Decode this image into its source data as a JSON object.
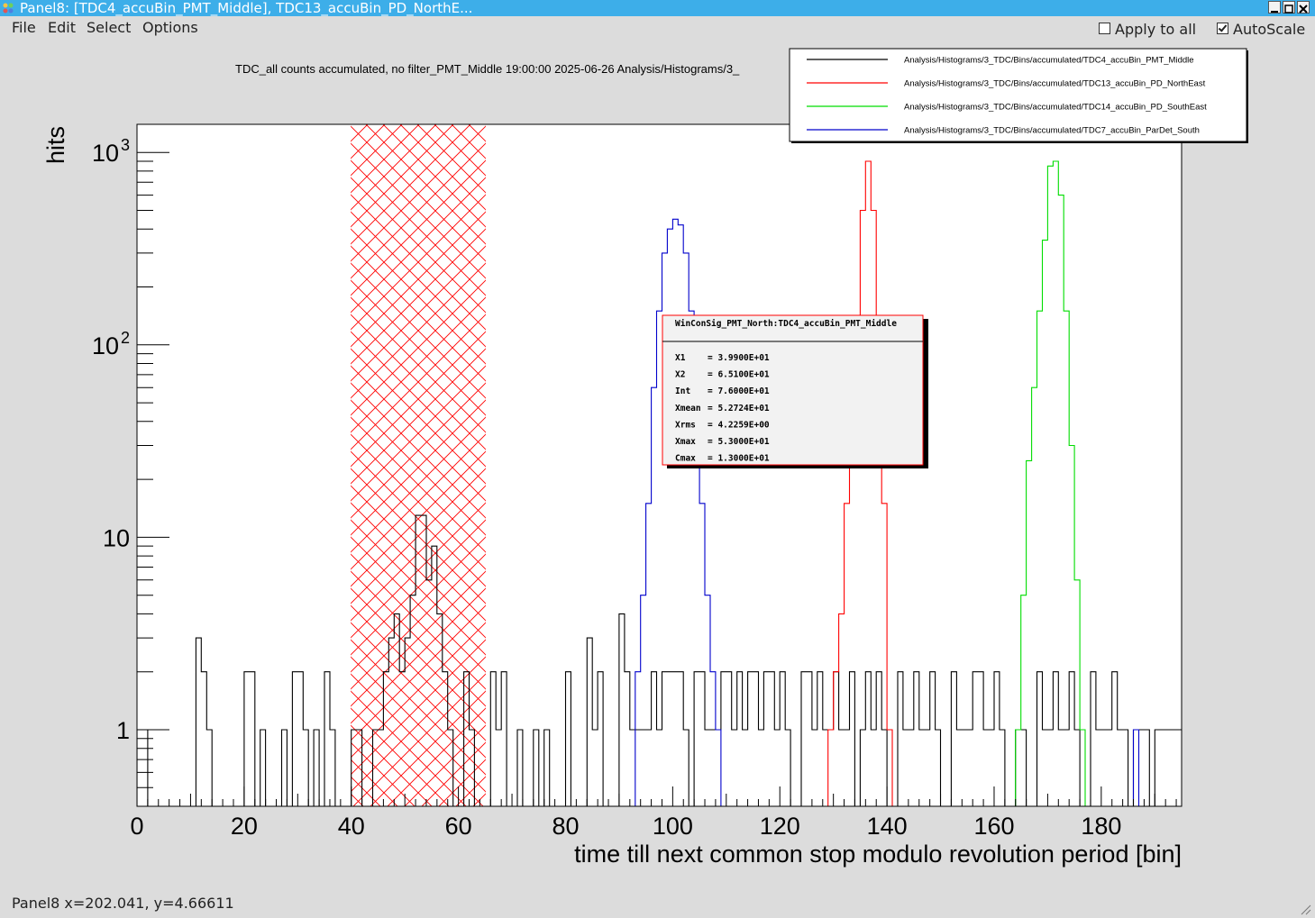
{
  "window": {
    "title": "Panel8: [TDC4_accuBin_PMT_Middle], TDC13_accuBin_PD_NorthE..."
  },
  "menu": {
    "file": "File",
    "edit": "Edit",
    "select": "Select",
    "options": "Options"
  },
  "toolbar": {
    "apply_to_all": "Apply to all",
    "apply_to_all_checked": false,
    "autoscale": "AutoScale",
    "autoscale_checked": true
  },
  "plot": {
    "title": "TDC_all counts accumulated, no filter_PMT_Middle  19:00:00  2025-06-26  Analysis/Histograms/3_",
    "ylabel": "hits",
    "xlabel": "time till next common stop modulo revolution period [bin]",
    "xticks": [
      "0",
      "20",
      "40",
      "60",
      "80",
      "100",
      "120",
      "140",
      "160",
      "180"
    ],
    "yticks": [
      {
        "base": "10",
        "exp": "3"
      },
      {
        "base": "10",
        "exp": "2"
      },
      {
        "base": "10",
        "exp": ""
      },
      {
        "base": "1",
        "exp": ""
      }
    ],
    "legend": [
      {
        "label": "Analysis/Histograms/3_TDC/Bins/accumulated/TDC4_accuBin_PMT_Middle",
        "color": "#000000"
      },
      {
        "label": "Analysis/Histograms/3_TDC/Bins/accumulated/TDC13_accuBin_PD_NorthEast",
        "color": "#ff0000"
      },
      {
        "label": "Analysis/Histograms/3_TDC/Bins/accumulated/TDC14_accuBin_PD_SouthEast",
        "color": "#00dd00"
      },
      {
        "label": "Analysis/Histograms/3_TDC/Bins/accumulated/TDC7_accuBin_ParDet_South",
        "color": "#0000cc"
      }
    ],
    "stats": {
      "title": "WinConSig_PMT_North:TDC4_accuBin_PMT_Middle",
      "rows": [
        {
          "k": "X1",
          "v": "= 3.9900E+01"
        },
        {
          "k": "X2",
          "v": "= 6.5100E+01"
        },
        {
          "k": "Int",
          "v": "= 7.6000E+01"
        },
        {
          "k": "Xmean",
          "v": "= 5.2724E+01"
        },
        {
          "k": "Xrms",
          "v": "= 4.2259E+00"
        },
        {
          "k": "Xmax",
          "v": "= 5.3000E+01"
        },
        {
          "k": "Cmax",
          "v": "= 1.3000E+01"
        }
      ]
    }
  },
  "chart_data": {
    "type": "line",
    "xlabel": "time till next common stop modulo revolution period [bin]",
    "ylabel": "hits",
    "xlim": [
      0,
      195
    ],
    "ylim": [
      0.4,
      1400
    ],
    "log_y": true,
    "window_region": [
      39.9,
      65.1
    ],
    "series": [
      {
        "name": "Analysis/Histograms/3_TDC/Bins/accumulated/TDC4_accuBin_PMT_Middle",
        "color": "#000000",
        "bins": [
          [
            0,
            1
          ],
          [
            2,
            0
          ],
          [
            11,
            3
          ],
          [
            12,
            2
          ],
          [
            13,
            1
          ],
          [
            14,
            0
          ],
          [
            20,
            2
          ],
          [
            22,
            0
          ],
          [
            23,
            1
          ],
          [
            24,
            0
          ],
          [
            27,
            1
          ],
          [
            28,
            0
          ],
          [
            29,
            2
          ],
          [
            31,
            1
          ],
          [
            32,
            0
          ],
          [
            33,
            1
          ],
          [
            34,
            0
          ],
          [
            35,
            2
          ],
          [
            36,
            1
          ],
          [
            37,
            0
          ],
          [
            40,
            1
          ],
          [
            42,
            0
          ],
          [
            44,
            1
          ],
          [
            46,
            2
          ],
          [
            47,
            3
          ],
          [
            48,
            4
          ],
          [
            49,
            2
          ],
          [
            50,
            3
          ],
          [
            51,
            5
          ],
          [
            52,
            13
          ],
          [
            54,
            6
          ],
          [
            55,
            9
          ],
          [
            56,
            4
          ],
          [
            57,
            2
          ],
          [
            58,
            1
          ],
          [
            59,
            0
          ],
          [
            61,
            2
          ],
          [
            62,
            1
          ],
          [
            63,
            0
          ],
          [
            66,
            2
          ],
          [
            67,
            1
          ],
          [
            68,
            2
          ],
          [
            69,
            0
          ],
          [
            71,
            1
          ],
          [
            72,
            0
          ],
          [
            74,
            1
          ],
          [
            75,
            0
          ],
          [
            76,
            1
          ],
          [
            77,
            0
          ],
          [
            80,
            2
          ],
          [
            81,
            0
          ],
          [
            84,
            3
          ],
          [
            85,
            1
          ],
          [
            86,
            2
          ],
          [
            87,
            0
          ],
          [
            90,
            4
          ],
          [
            91,
            2
          ],
          [
            92,
            1
          ],
          [
            96,
            2
          ],
          [
            97,
            1
          ],
          [
            98,
            2
          ],
          [
            102,
            1
          ],
          [
            103,
            0
          ],
          [
            104,
            2
          ],
          [
            106,
            1
          ],
          [
            109,
            2
          ],
          [
            111,
            1
          ],
          [
            112,
            2
          ],
          [
            113,
            1
          ],
          [
            114,
            2
          ],
          [
            116,
            1
          ],
          [
            117,
            2
          ],
          [
            119,
            1
          ],
          [
            120,
            2
          ],
          [
            121,
            1
          ],
          [
            122,
            0
          ],
          [
            124,
            2
          ],
          [
            126,
            1
          ],
          [
            127,
            2
          ],
          [
            128,
            1
          ],
          [
            130,
            2
          ],
          [
            131,
            1
          ],
          [
            133,
            2
          ],
          [
            134,
            0
          ],
          [
            135,
            1
          ],
          [
            136,
            2
          ],
          [
            137,
            1
          ],
          [
            138,
            2
          ],
          [
            139,
            1
          ],
          [
            140,
            0
          ],
          [
            142,
            2
          ],
          [
            143,
            1
          ],
          [
            145,
            2
          ],
          [
            146,
            1
          ],
          [
            148,
            2
          ],
          [
            149,
            1
          ],
          [
            150,
            0
          ],
          [
            152,
            2
          ],
          [
            153,
            1
          ],
          [
            156,
            2
          ],
          [
            158,
            1
          ],
          [
            160,
            2
          ],
          [
            161,
            1
          ],
          [
            162,
            0
          ],
          [
            164,
            1
          ],
          [
            166,
            0
          ],
          [
            168,
            2
          ],
          [
            169,
            1
          ],
          [
            171,
            2
          ],
          [
            172,
            1
          ],
          [
            174,
            2
          ],
          [
            175,
            1
          ],
          [
            176,
            0
          ],
          [
            178,
            2
          ],
          [
            179,
            1
          ],
          [
            182,
            2
          ],
          [
            183,
            1
          ],
          [
            185,
            0
          ],
          [
            186,
            1
          ],
          [
            189,
            0
          ],
          [
            190,
            1
          ],
          [
            195,
            1
          ]
        ]
      },
      {
        "name": "Analysis/Histograms/3_TDC/Bins/accumulated/TDC13_accuBin_PD_NorthEast",
        "color": "#ff0000",
        "bins": [
          [
            128,
            0
          ],
          [
            129,
            1
          ],
          [
            130,
            2
          ],
          [
            131,
            4
          ],
          [
            132,
            15
          ],
          [
            133,
            40
          ],
          [
            134,
            120
          ],
          [
            135,
            500
          ],
          [
            136,
            900
          ],
          [
            137,
            500
          ],
          [
            138,
            120
          ],
          [
            139,
            15
          ],
          [
            140,
            1
          ],
          [
            141,
            0
          ]
        ]
      },
      {
        "name": "Analysis/Histograms/3_TDC/Bins/accumulated/TDC14_accuBin_PD_SouthEast",
        "color": "#00dd00",
        "bins": [
          [
            163,
            0
          ],
          [
            164,
            1
          ],
          [
            165,
            5
          ],
          [
            166,
            25
          ],
          [
            167,
            60
          ],
          [
            168,
            150
          ],
          [
            169,
            350
          ],
          [
            170,
            850
          ],
          [
            171,
            900
          ],
          [
            172,
            600
          ],
          [
            173,
            150
          ],
          [
            174,
            30
          ],
          [
            175,
            6
          ],
          [
            176,
            1
          ],
          [
            177,
            0
          ]
        ]
      },
      {
        "name": "Analysis/Histograms/3_TDC/Bins/accumulated/TDC7_accuBin_ParDet_South",
        "color": "#0000cc",
        "bins": [
          [
            93,
            2
          ],
          [
            94,
            5
          ],
          [
            95,
            15
          ],
          [
            96,
            60
          ],
          [
            97,
            150
          ],
          [
            98,
            300
          ],
          [
            99,
            400
          ],
          [
            100,
            450
          ],
          [
            101,
            420
          ],
          [
            102,
            300
          ],
          [
            103,
            150
          ],
          [
            104,
            60
          ],
          [
            105,
            15
          ],
          [
            106,
            5
          ],
          [
            107,
            2
          ],
          [
            108,
            1
          ],
          [
            109,
            0
          ],
          [
            186,
            1
          ],
          [
            187,
            0
          ]
        ]
      }
    ]
  },
  "status": {
    "text": "Panel8  x=202.041, y=4.66611"
  }
}
